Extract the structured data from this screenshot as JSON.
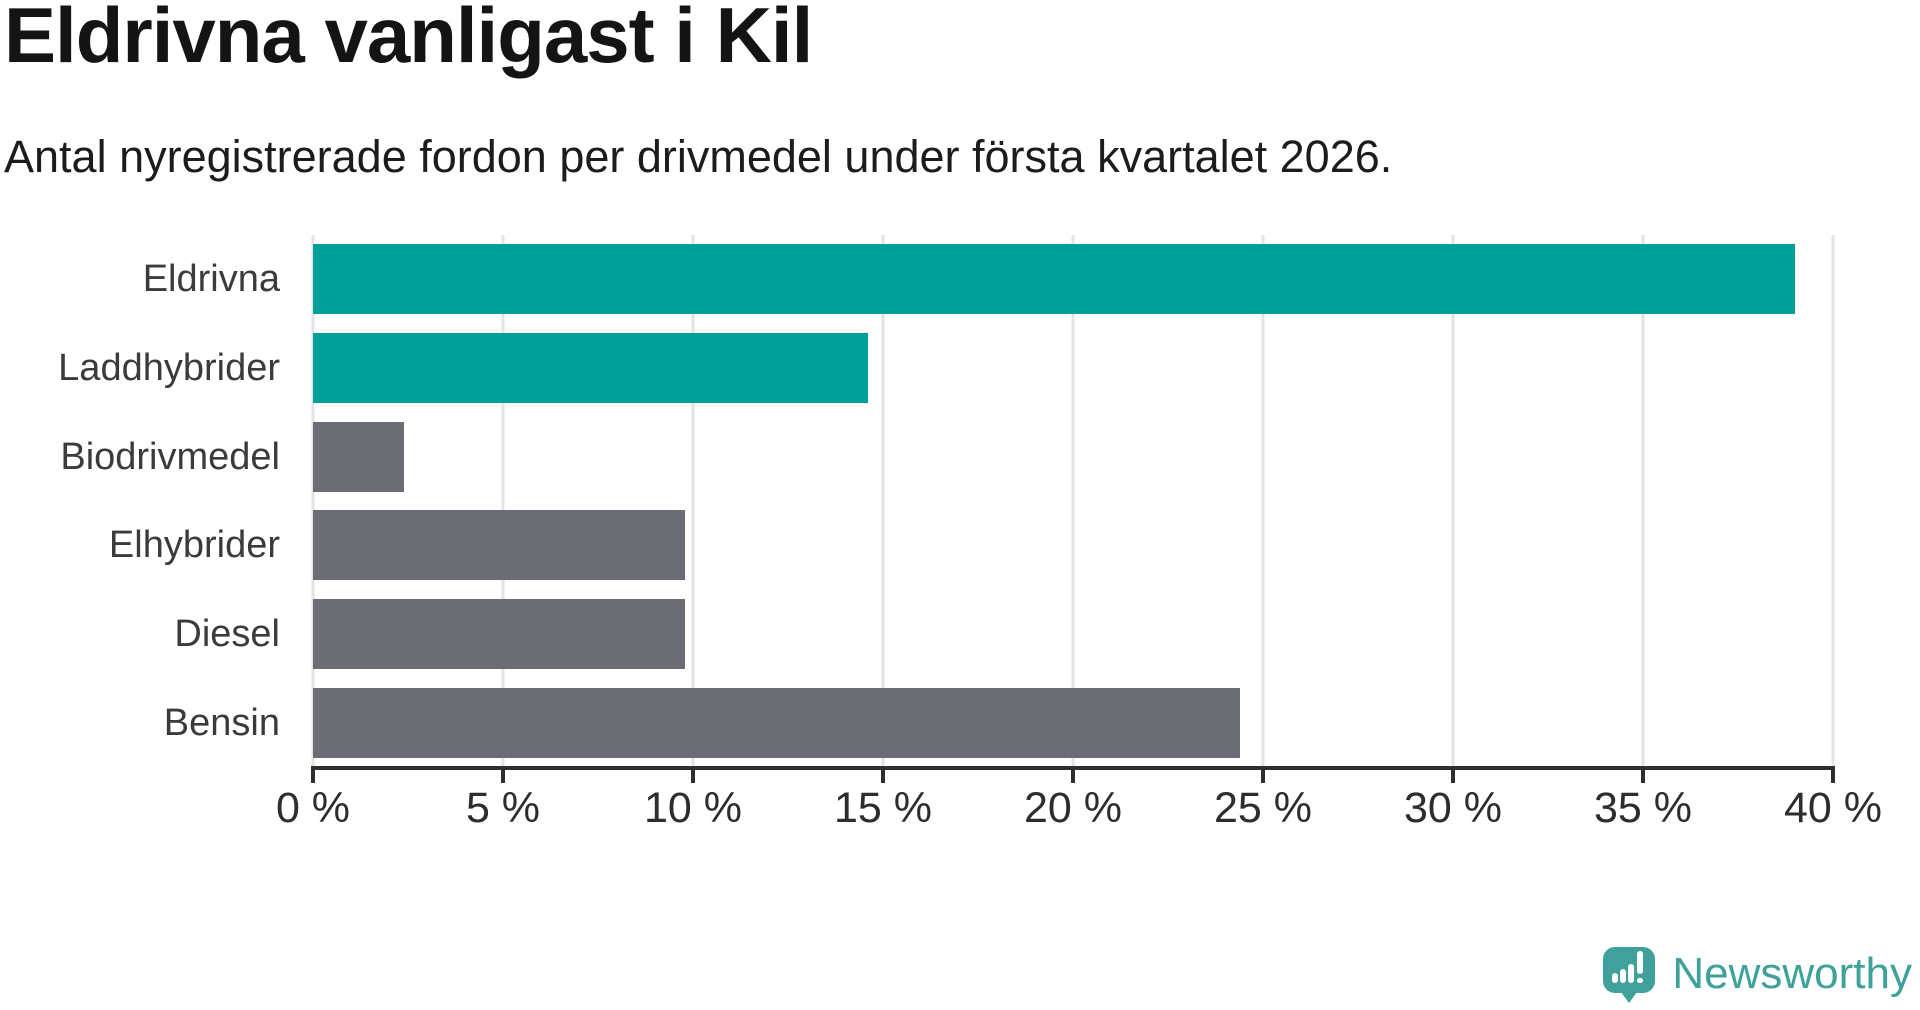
{
  "title": "Eldrivna vanligast i Kil",
  "subtitle": "Antal nyregistrerade fordon per drivmedel under första kvartalet 2026.",
  "chart_data": {
    "type": "bar",
    "orientation": "horizontal",
    "title": "Eldrivna vanligast i Kil",
    "subtitle": "Antal nyregistrerade fordon per drivmedel under första kvartalet 2026.",
    "categories": [
      "Eldrivna",
      "Laddhybrider",
      "Biodrivmedel",
      "Elhybrider",
      "Diesel",
      "Bensin"
    ],
    "values": [
      39.0,
      14.6,
      2.4,
      9.8,
      9.8,
      24.4
    ],
    "unit": "%",
    "bars": [
      {
        "label": "Eldrivna",
        "value": 39.0,
        "color": "#00a099"
      },
      {
        "label": "Laddhybrider",
        "value": 14.6,
        "color": "#00a099"
      },
      {
        "label": "Biodrivmedel",
        "value": 2.4,
        "color": "#6c6c74"
      },
      {
        "label": "Elhybrider",
        "value": 9.8,
        "color": "#6c6c74"
      },
      {
        "label": "Diesel",
        "value": 9.8,
        "color": "#6c6c74"
      },
      {
        "label": "Bensin",
        "value": 24.4,
        "color": "#6c6c74"
      }
    ],
    "xlim": [
      0,
      40
    ],
    "x_ticks": [
      {
        "value": 0,
        "label": "0 %"
      },
      {
        "value": 5,
        "label": "5 %"
      },
      {
        "value": 10,
        "label": "10 %"
      },
      {
        "value": 15,
        "label": "15 %"
      },
      {
        "value": 20,
        "label": "20 %"
      },
      {
        "value": 25,
        "label": "25 %"
      },
      {
        "value": 30,
        "label": "30 %"
      },
      {
        "value": 35,
        "label": "35 %"
      },
      {
        "value": 40,
        "label": "40 %"
      }
    ],
    "grid": true,
    "legend": "none",
    "highlight_color": "#00a099",
    "base_color": "#6c6c74",
    "gridline_color": "#e3e3e3",
    "axis_color": "#2e2e2e"
  },
  "logo": {
    "text": "Newsworthy",
    "brand_color": "#3ea19a",
    "icon": "newsworthy-speech-bubble-chart-icon"
  }
}
